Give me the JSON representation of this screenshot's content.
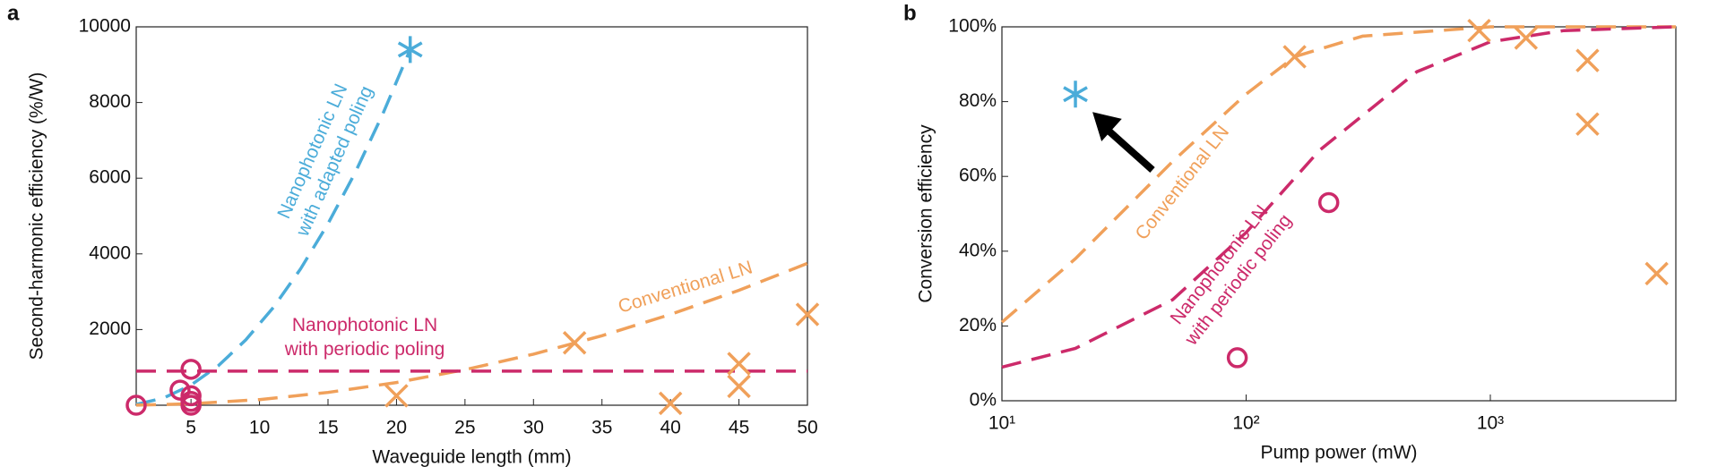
{
  "chart_data": [
    {
      "type": "scatter",
      "panel_label": "a",
      "xlabel": "Waveguide length (mm)",
      "ylabel": "Second-harmonic efficiency (%/W)",
      "xlim": [
        1,
        50
      ],
      "ylim": [
        0,
        10000
      ],
      "xticks": [
        5,
        10,
        15,
        20,
        25,
        30,
        35,
        40,
        45,
        50
      ],
      "yticks": [
        2000,
        4000,
        6000,
        8000,
        10000
      ],
      "series": [
        {
          "color": "#4bacd9",
          "style": "dashed",
          "label": [
            "Nanophotonic LN",
            "with adapted poling"
          ],
          "x": [
            1,
            3,
            5,
            7,
            9,
            11,
            13,
            15,
            17,
            19,
            21
          ],
          "values": [
            21,
            192,
            533,
            1044,
            1727,
            2579,
            3603,
            4796,
            6160,
            7694,
            9400
          ]
        },
        {
          "color": "#f0a05a",
          "style": "dashed",
          "label": [
            "Conventional LN"
          ],
          "x": [
            1,
            5,
            10,
            15,
            20,
            25,
            30,
            35,
            40,
            45,
            50
          ],
          "values": [
            2,
            38,
            150,
            338,
            600,
            938,
            1350,
            1838,
            2400,
            3038,
            3750
          ]
        },
        {
          "color": "#cc2a6a",
          "style": "dashed",
          "label": [
            "Nanophotonic LN",
            "with periodic poling"
          ],
          "x": [
            1,
            50
          ],
          "values": [
            900,
            900
          ]
        },
        {
          "color": "#4bacd9",
          "marker": "asterisk",
          "x": [
            21
          ],
          "values": [
            9400
          ]
        },
        {
          "color": "#f0a05a",
          "marker": "x",
          "x": [
            20,
            33,
            40,
            45,
            45,
            50
          ],
          "values": [
            250,
            1650,
            50,
            1100,
            500,
            2400
          ]
        },
        {
          "color": "#cc2a6a",
          "marker": "circle",
          "x": [
            1,
            4.2,
            5,
            5,
            5,
            5
          ],
          "values": [
            0,
            400,
            950,
            250,
            100,
            0
          ]
        }
      ]
    },
    {
      "type": "scatter",
      "panel_label": "b",
      "xlabel": "Pump power (mW)",
      "ylabel": "Conversion efficiency",
      "xscale": "log",
      "xlim": [
        10,
        5750
      ],
      "ylim": [
        0,
        100
      ],
      "xticks": [
        {
          "value": 10,
          "label": "10¹"
        },
        {
          "value": 100,
          "label": "10²"
        },
        {
          "value": 1000,
          "label": "10³"
        }
      ],
      "yticks": [
        {
          "value": 0,
          "label": "0%"
        },
        {
          "value": 20,
          "label": "20%"
        },
        {
          "value": 40,
          "label": "40%"
        },
        {
          "value": 60,
          "label": "60%"
        },
        {
          "value": 80,
          "label": "80%"
        },
        {
          "value": 100,
          "label": "100%"
        }
      ],
      "series": [
        {
          "color": "#f0a05a",
          "style": "dashed",
          "label": [
            "Conventional LN"
          ],
          "x": [
            10,
            20,
            50,
            100,
            158,
            300,
            1000,
            5750
          ],
          "values": [
            21,
            38,
            64,
            82,
            92,
            97.5,
            100,
            100
          ]
        },
        {
          "color": "#cc2a6a",
          "style": "dashed",
          "label": [
            "Nanophotonic LN",
            "with periodic poling"
          ],
          "x": [
            10,
            20,
            50,
            100,
            200,
            500,
            1000,
            2000,
            5750
          ],
          "values": [
            9,
            14,
            27,
            45,
            67,
            88,
            96,
            99,
            100
          ]
        },
        {
          "color": "#4bacd9",
          "marker": "asterisk",
          "x": [
            20
          ],
          "values": [
            82
          ]
        },
        {
          "color": "#f0a05a",
          "marker": "x",
          "x": [
            158,
            900,
            1400,
            2500,
            2500,
            4800
          ],
          "values": [
            92,
            99,
            97,
            91,
            74,
            34
          ]
        },
        {
          "color": "#cc2a6a",
          "marker": "circle",
          "x": [
            92,
            218
          ],
          "values": [
            11.5,
            53
          ]
        }
      ]
    }
  ]
}
